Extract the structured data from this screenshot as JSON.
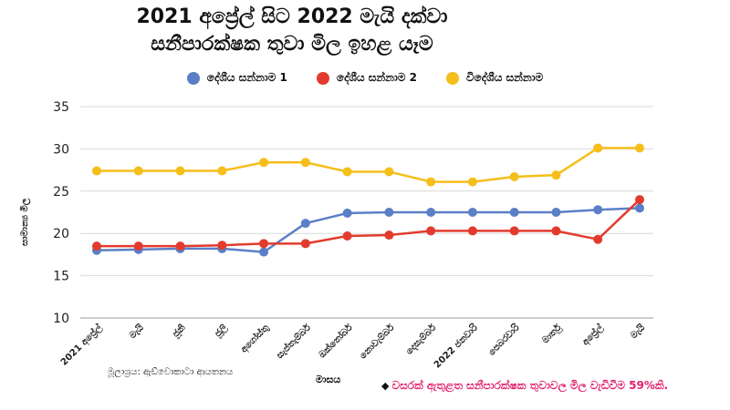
{
  "chart_data": {
    "type": "line",
    "title_line1": "2021 අප්‍රේල් සිට 2022 මැයි දක්වා",
    "title_line2": "සනීපාරක්ෂක තුවා මිල ඉහළ යෑම",
    "ylabel": "සාමාන්‍ය මිල",
    "xlabel": "මාසය",
    "ylim": [
      10,
      35
    ],
    "yticks": [
      "35",
      "30",
      "25",
      "20",
      "15",
      "10"
    ],
    "grid": true,
    "legend_position": "top",
    "categories": [
      "2021 අප්‍රේල්",
      "මැයි",
      "ජූනි",
      "ජූලි",
      "අගෝස්තු",
      "සැප්තැම්බර්",
      "ඔක්තෝබර්",
      "නොවැම්බර්",
      "දෙසැම්බර්",
      "2022 ජනවාරි",
      "පෙබරවාරි",
      "මාර්තු",
      "අප්‍රේල්",
      "මැයි"
    ],
    "series": [
      {
        "name": "දේශීය සන්නාම 1",
        "color": "#5b7fc7",
        "values": [
          18.0,
          18.1,
          18.2,
          18.2,
          17.8,
          21.2,
          22.4,
          22.5,
          22.5,
          22.5,
          22.5,
          22.5,
          22.8,
          23.0
        ]
      },
      {
        "name": "දේශීය සන්නාම 2",
        "color": "#e23b2e",
        "values": [
          18.5,
          18.5,
          18.5,
          18.6,
          18.8,
          18.8,
          19.7,
          19.8,
          20.3,
          20.3,
          20.3,
          20.3,
          19.3,
          24.0
        ]
      },
      {
        "name": "විදේශීය සන්නාම",
        "color": "#f5be1a",
        "values": [
          27.4,
          27.4,
          27.4,
          27.4,
          28.4,
          28.4,
          27.3,
          27.3,
          26.1,
          26.1,
          26.7,
          26.9,
          30.1,
          30.1
        ]
      }
    ]
  },
  "source_text": "මූලාශ්‍රය: ඇඩ්වොකාටා ආයතනය",
  "note_marker": "◆",
  "note_text": "වසරක් ඇතුළත සනීපාරක්ෂක තුවාවල මිල වැඩිවීම 59%කි."
}
